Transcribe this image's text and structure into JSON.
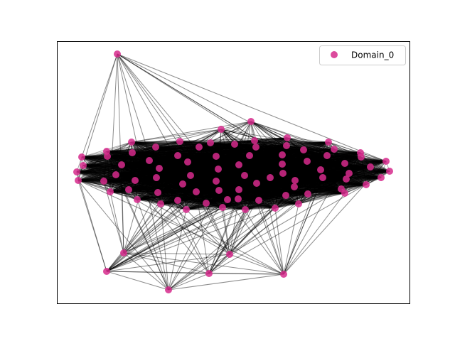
{
  "legend": {
    "label": "Domain_0",
    "color": "#d62a8c"
  }
}
